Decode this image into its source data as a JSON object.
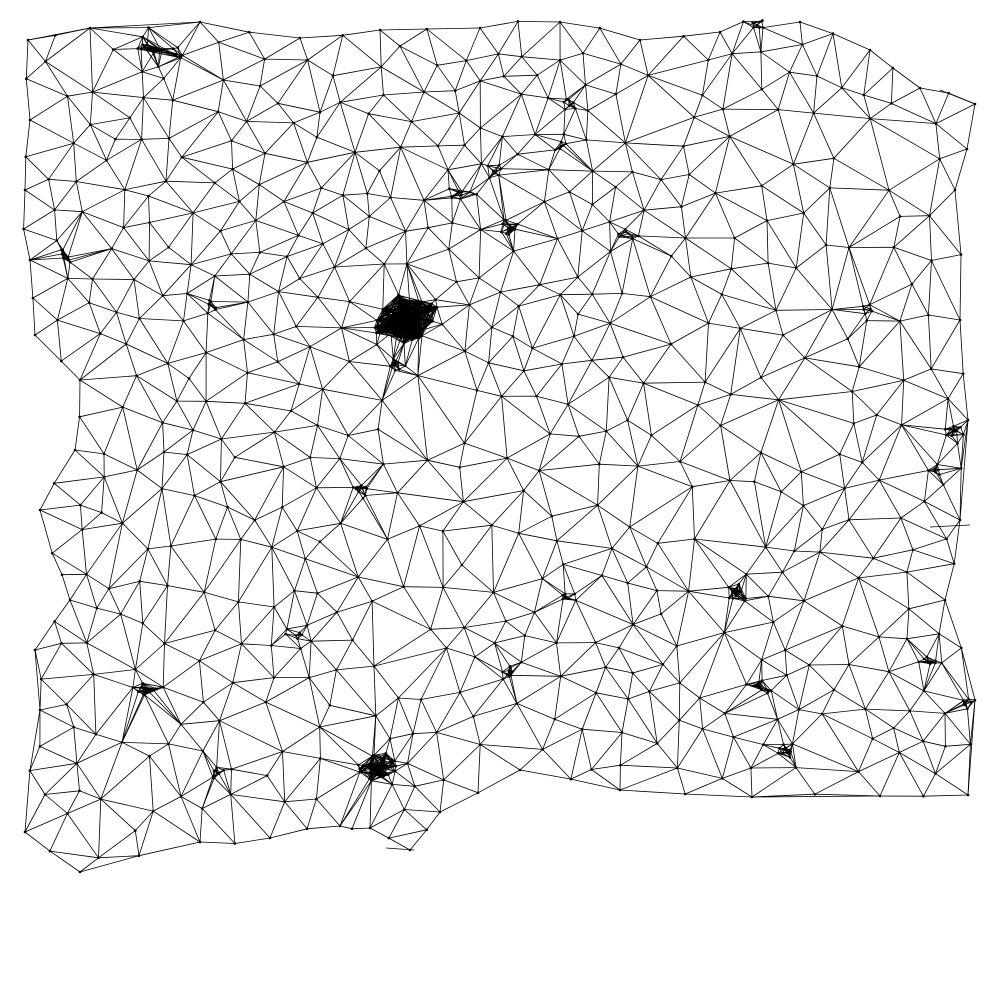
{
  "diagram": {
    "type": "triangulated-mesh-graph",
    "background_color": "#ffffff",
    "edge_color": "#000000",
    "node_color": "#000000"
  }
}
